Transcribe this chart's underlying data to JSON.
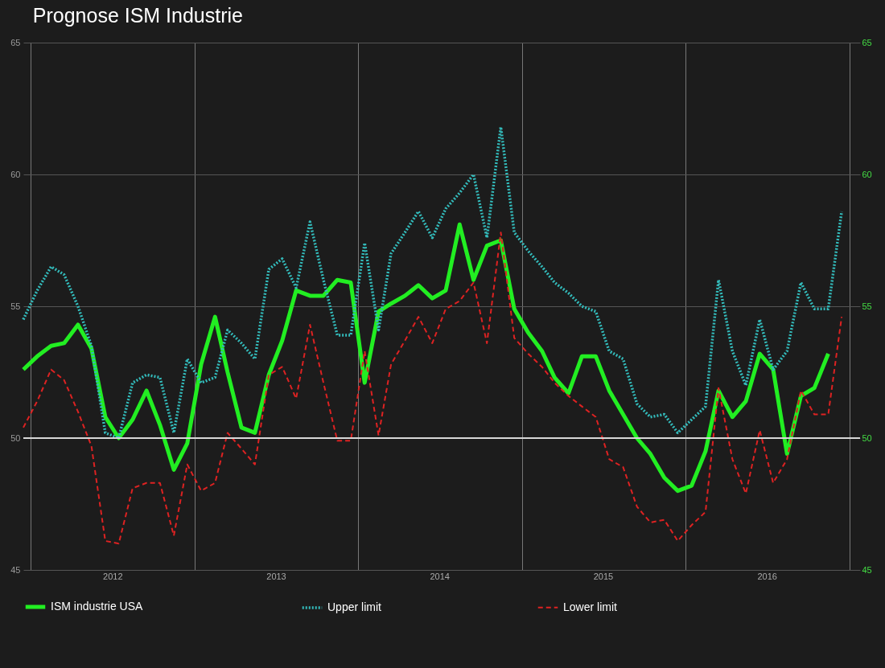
{
  "chart_data": {
    "type": "line",
    "title": "Prognose ISM Industrie",
    "x": [
      "2011-12-15",
      "2012-01-15",
      "2012-02-15",
      "2012-03-15",
      "2012-04-15",
      "2012-05-15",
      "2012-06-15",
      "2012-07-15",
      "2012-08-15",
      "2012-09-15",
      "2012-10-15",
      "2012-11-15",
      "2012-12-15",
      "2013-01-15",
      "2013-02-15",
      "2013-03-15",
      "2013-04-15",
      "2013-05-15",
      "2013-06-15",
      "2013-07-15",
      "2013-08-15",
      "2013-09-15",
      "2013-10-15",
      "2013-11-15",
      "2013-12-15",
      "2014-01-15",
      "2014-02-15",
      "2014-03-15",
      "2014-04-15",
      "2014-05-15",
      "2014-06-15",
      "2014-07-15",
      "2014-08-15",
      "2014-09-15",
      "2014-10-15",
      "2014-11-15",
      "2014-12-15",
      "2015-01-15",
      "2015-02-15",
      "2015-03-15",
      "2015-04-15",
      "2015-05-15",
      "2015-06-15",
      "2015-07-15",
      "2015-08-15",
      "2015-09-15",
      "2015-10-15",
      "2015-11-15",
      "2015-12-15",
      "2016-01-15",
      "2016-02-15",
      "2016-03-15",
      "2016-04-15",
      "2016-05-15",
      "2016-06-15",
      "2016-07-15",
      "2016-08-15",
      "2016-09-15",
      "2016-10-15",
      "2016-11-15",
      "2016-12-15"
    ],
    "series": [
      {
        "name": "ISM industrie USA",
        "color": "#22ee22",
        "line_style": "solid",
        "values": [
          52.6,
          53.1,
          53.5,
          53.6,
          54.3,
          53.4,
          50.8,
          50.0,
          50.7,
          51.8,
          50.5,
          48.8,
          49.8,
          52.8,
          54.6,
          52.5,
          50.4,
          50.2,
          52.4,
          53.7,
          55.6,
          55.4,
          55.4,
          56.0,
          55.9,
          52.1,
          54.8,
          55.1,
          55.4,
          55.8,
          55.3,
          55.6,
          58.1,
          56.0,
          57.3,
          57.5,
          54.9,
          54.0,
          53.3,
          52.3,
          51.7,
          53.1,
          53.1,
          51.8,
          50.9,
          50.0,
          49.4,
          48.5,
          48.0,
          48.2,
          49.5,
          51.8,
          50.8,
          51.4,
          53.2,
          52.6,
          49.4,
          51.6,
          51.9,
          53.2,
          null
        ]
      },
      {
        "name": "Upper limit",
        "color": "#33bbbb",
        "line_style": "dotted",
        "values": [
          54.5,
          55.6,
          56.5,
          56.2,
          55.0,
          53.5,
          50.2,
          50.0,
          52.1,
          52.4,
          52.3,
          50.2,
          53.0,
          52.1,
          52.3,
          54.1,
          53.6,
          53.0,
          56.4,
          56.8,
          55.7,
          58.2,
          56.0,
          53.9,
          53.9,
          57.4,
          54.1,
          57.0,
          57.8,
          58.6,
          57.6,
          58.7,
          59.3,
          60.0,
          57.6,
          61.8,
          57.8,
          57.1,
          56.5,
          55.9,
          55.5,
          55.0,
          54.8,
          53.3,
          53.0,
          51.3,
          50.8,
          50.9,
          50.2,
          50.7,
          51.2,
          56.0,
          53.3,
          52.0,
          54.5,
          52.6,
          53.3,
          55.9,
          54.9,
          54.9,
          58.6
        ]
      },
      {
        "name": "Lower limit",
        "color": "#dd2222",
        "line_style": "dashed",
        "values": [
          50.4,
          51.4,
          52.6,
          52.2,
          51.0,
          49.7,
          46.1,
          46.0,
          48.1,
          48.3,
          48.3,
          46.3,
          49.0,
          48.0,
          48.3,
          50.2,
          49.6,
          49.0,
          52.4,
          52.7,
          51.5,
          54.3,
          52.1,
          49.9,
          49.9,
          53.3,
          50.1,
          52.8,
          53.7,
          54.6,
          53.6,
          54.9,
          55.2,
          55.9,
          53.6,
          57.8,
          53.8,
          53.2,
          52.7,
          52.1,
          51.6,
          51.2,
          50.8,
          49.2,
          48.9,
          47.4,
          46.8,
          46.9,
          46.1,
          46.7,
          47.2,
          51.9,
          49.2,
          47.9,
          50.3,
          48.3,
          49.2,
          51.8,
          50.9,
          50.9,
          54.6
        ]
      }
    ],
    "xlim": [
      "2011-12-15",
      "2017-01-25"
    ],
    "xticks": [
      {
        "value": "2012-01-01",
        "label": null
      },
      {
        "value": "2012-07-01",
        "label": "2012"
      },
      {
        "value": "2013-01-01",
        "label": null
      },
      {
        "value": "2013-07-01",
        "label": "2013"
      },
      {
        "value": "2014-01-01",
        "label": null
      },
      {
        "value": "2014-07-01",
        "label": "2014"
      },
      {
        "value": "2015-01-01",
        "label": null
      },
      {
        "value": "2015-07-01",
        "label": "2015"
      },
      {
        "value": "2016-01-01",
        "label": null
      },
      {
        "value": "2016-07-01",
        "label": "2016"
      },
      {
        "value": "2017-01-01",
        "label": null
      }
    ],
    "ylim": [
      45,
      65
    ],
    "yticks": [
      45,
      50,
      55,
      60,
      65
    ],
    "y2lim": [
      45,
      65
    ],
    "y2ticks": [
      45,
      50,
      55,
      60,
      65
    ],
    "ref_lines": [
      {
        "axis": "y",
        "value": 50,
        "color": "#d8d8d8"
      }
    ],
    "grid": true,
    "legend": "bottom",
    "marker": "none"
  }
}
